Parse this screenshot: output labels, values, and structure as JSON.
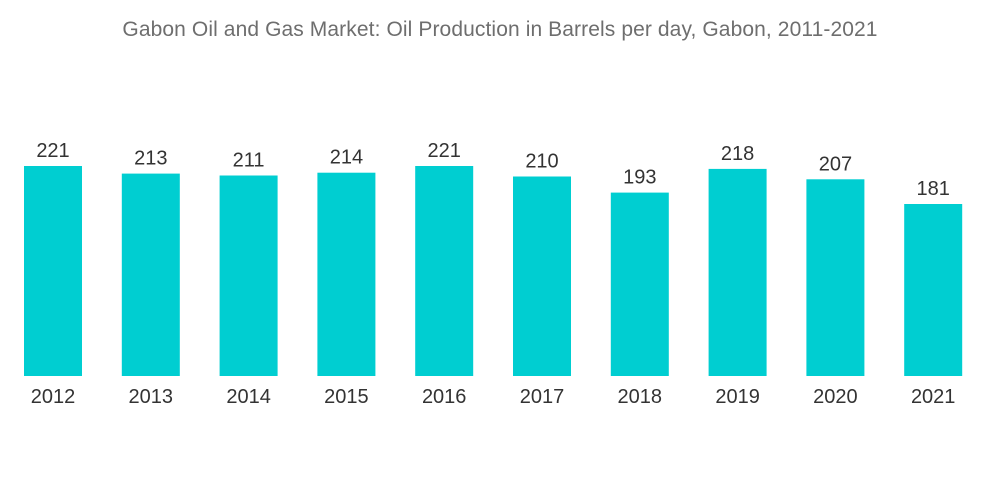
{
  "title": "Gabon Oil and Gas Market: Oil Production in Barrels per day, Gabon, 2011-2021",
  "colors": {
    "bar": "#00CED1",
    "text": "#333333",
    "title": "#6e6e6e"
  },
  "chart_data": {
    "type": "bar",
    "title": "Gabon Oil and Gas Market: Oil Production in Barrels per day, Gabon, 2011-2021",
    "xlabel": "",
    "ylabel": "",
    "categories": [
      "2012",
      "2013",
      "2014",
      "2015",
      "2016",
      "2017",
      "2018",
      "2019",
      "2020",
      "2021"
    ],
    "values": [
      221,
      213,
      211,
      214,
      221,
      210,
      193,
      218,
      207,
      181
    ],
    "data_labels": [
      "221",
      "213",
      "211",
      "214",
      "221",
      "210",
      "193",
      "218",
      "207",
      "181"
    ],
    "ylim": [
      0,
      221
    ],
    "grid": false,
    "legend": "none"
  }
}
